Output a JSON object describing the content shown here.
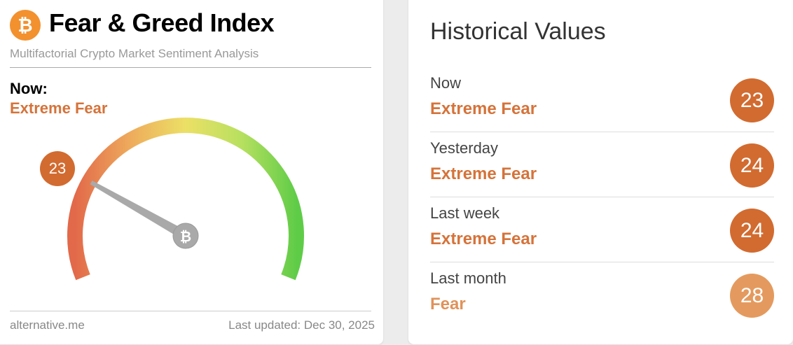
{
  "header": {
    "title": "Fear & Greed Index",
    "subtitle": "Multifactorial Crypto Market Sentiment Analysis",
    "logo_icon": "bitcoin-icon"
  },
  "now": {
    "label": "Now:",
    "classification": "Extreme Fear",
    "value": "23"
  },
  "gauge": {
    "value": 23,
    "min": 0,
    "max": 100
  },
  "footer": {
    "source": "alternative.me",
    "updated": "Last updated: Dec 30, 2025"
  },
  "historical": {
    "title": "Historical Values",
    "rows": [
      {
        "label": "Now",
        "classification": "Extreme Fear",
        "value": "23",
        "color": "#d26b30"
      },
      {
        "label": "Yesterday",
        "classification": "Extreme Fear",
        "value": "24",
        "color": "#d26b30"
      },
      {
        "label": "Last week",
        "classification": "Extreme Fear",
        "value": "24",
        "color": "#d26b30"
      },
      {
        "label": "Last month",
        "classification": "Fear",
        "value": "28",
        "color": "#e49a5e"
      }
    ]
  },
  "colors": {
    "extreme_fear": "#d26b30",
    "fear": "#e49a5e",
    "text_extreme_fear": "#d5733a",
    "text_fear": "#e0925a"
  }
}
